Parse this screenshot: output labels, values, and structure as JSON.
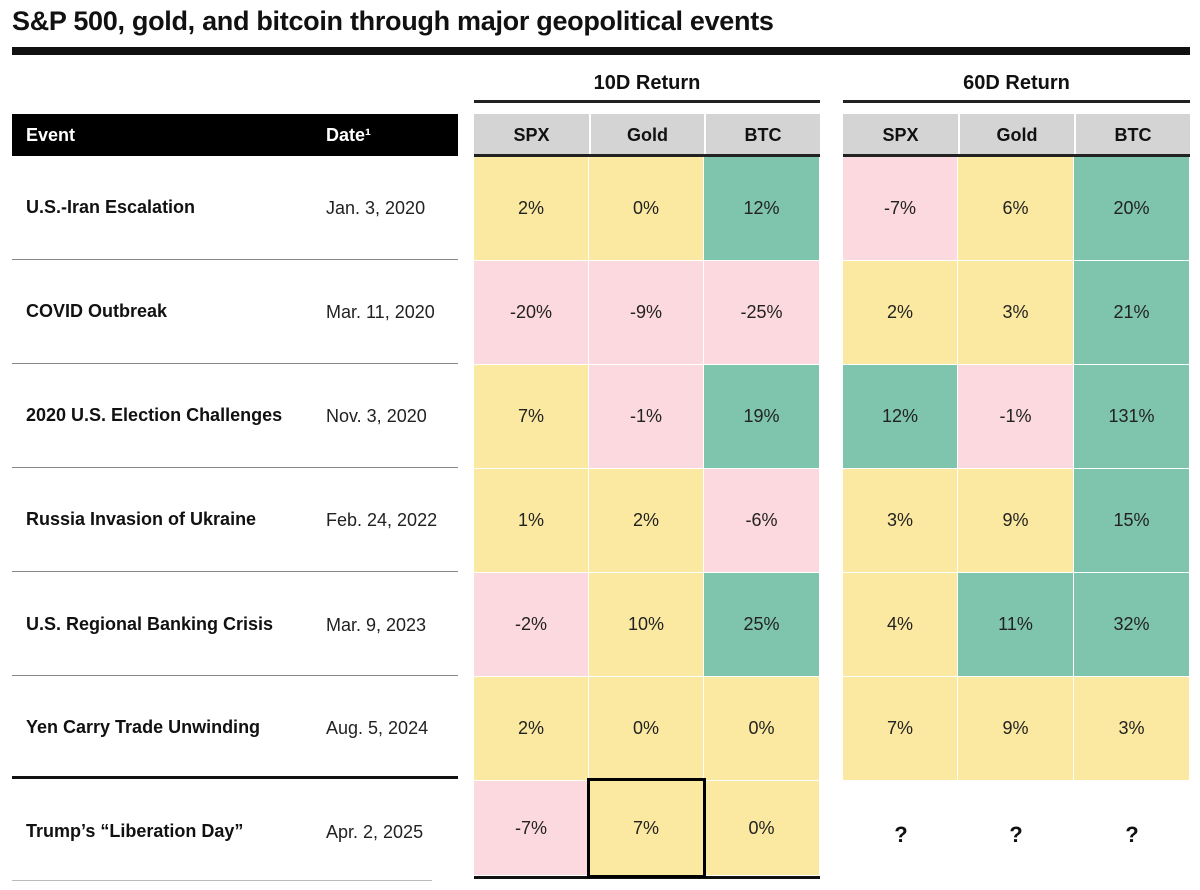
{
  "title": "S&P 500, gold, and bitcoin through major geopolitical events",
  "chart_data": {
    "type": "table",
    "title": "S&P 500, gold, and bitcoin through major geopolitical events",
    "groups": [
      "10D Return",
      "60D Return"
    ],
    "columns": [
      "Event",
      "Date¹",
      "SPX",
      "Gold",
      "BTC",
      "SPX",
      "Gold",
      "BTC"
    ],
    "header": {
      "event": "Event",
      "date": "Date¹"
    },
    "group_columns": {
      "10D": [
        "SPX",
        "Gold",
        "BTC"
      ],
      "60D": [
        "SPX",
        "Gold",
        "BTC"
      ]
    },
    "rows": [
      {
        "event": "U.S.-Iran Escalation",
        "date": "Jan. 3, 2020",
        "d10": [
          "2%",
          "0%",
          "12%"
        ],
        "d60": [
          "-7%",
          "6%",
          "20%"
        ],
        "d10_tone": [
          "y",
          "y",
          "g"
        ],
        "d60_tone": [
          "p",
          "y",
          "g"
        ]
      },
      {
        "event": "COVID Outbreak",
        "date": "Mar. 11, 2020",
        "d10": [
          "-20%",
          "-9%",
          "-25%"
        ],
        "d60": [
          "2%",
          "3%",
          "21%"
        ],
        "d10_tone": [
          "p",
          "p",
          "p"
        ],
        "d60_tone": [
          "y",
          "y",
          "g"
        ]
      },
      {
        "event": "2020 U.S. Election Challenges",
        "date": "Nov. 3, 2020",
        "d10": [
          "7%",
          "-1%",
          "19%"
        ],
        "d60": [
          "12%",
          "-1%",
          "131%"
        ],
        "d10_tone": [
          "y",
          "p",
          "g"
        ],
        "d60_tone": [
          "g",
          "p",
          "g"
        ]
      },
      {
        "event": "Russia Invasion of Ukraine",
        "date": "Feb. 24, 2022",
        "d10": [
          "1%",
          "2%",
          "-6%"
        ],
        "d60": [
          "3%",
          "9%",
          "15%"
        ],
        "d10_tone": [
          "y",
          "y",
          "p"
        ],
        "d60_tone": [
          "y",
          "y",
          "g"
        ]
      },
      {
        "event": "U.S. Regional Banking Crisis",
        "date": "Mar. 9, 2023",
        "d10": [
          "-2%",
          "10%",
          "25%"
        ],
        "d60": [
          "4%",
          "11%",
          "32%"
        ],
        "d10_tone": [
          "p",
          "y",
          "g"
        ],
        "d60_tone": [
          "y",
          "g",
          "g"
        ]
      },
      {
        "event": "Yen Carry Trade Unwinding",
        "date": "Aug. 5, 2024",
        "d10": [
          "2%",
          "0%",
          "0%"
        ],
        "d60": [
          "7%",
          "9%",
          "3%"
        ],
        "d10_tone": [
          "y",
          "y",
          "y"
        ],
        "d60_tone": [
          "y",
          "y",
          "y"
        ]
      }
    ],
    "last_row": {
      "event": "Trump’s “Liberation Day”",
      "date": "Apr. 2, 2025",
      "d10": [
        "-7%",
        "7%",
        "0%"
      ],
      "d60": [
        "?",
        "?",
        "?"
      ],
      "d10_tone": [
        "p",
        "y",
        "y"
      ]
    }
  },
  "colors": {
    "yellow": "#fbe9a1",
    "pink": "#fcd8df",
    "green": "#7fc4ad",
    "header_gray": "#d4d4d4",
    "black": "#000000"
  }
}
